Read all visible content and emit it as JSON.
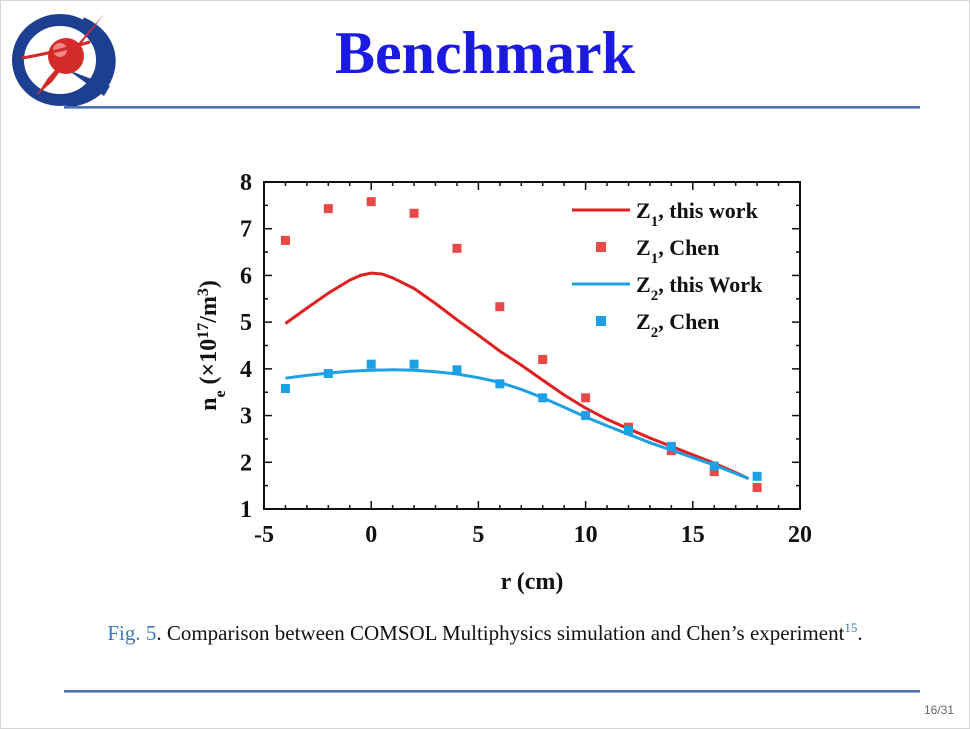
{
  "slide": {
    "title": "Benchmark",
    "page_number": "16/31",
    "caption": {
      "fig_label": "Fig. 5",
      "text": ". Comparison between COMSOL Multiphysics simulation and Chen’s experiment",
      "ref": "15",
      "end": "."
    },
    "colors": {
      "title": "#1a1ae0",
      "rule": "#4a72b8",
      "series_z1": "#e02020",
      "series_z1_points": "#e84848",
      "series_z2": "#1ea0e6"
    }
  },
  "chart_data": {
    "type": "line",
    "xlabel": "r  (cm)",
    "ylabel_main": "n",
    "ylabel_sub": "e",
    "ylabel_rest": "(×10",
    "ylabel_exp": "17",
    "ylabel_unit": "/m",
    "ylabel_unit_exp": "3",
    "ylabel_close": ")",
    "xlim": [
      -5,
      20
    ],
    "ylim": [
      1,
      8
    ],
    "xticks": [
      "-5",
      "0",
      "5",
      "10",
      "15",
      "20"
    ],
    "yticks": [
      "1",
      "2",
      "3",
      "4",
      "5",
      "6",
      "7",
      "8"
    ],
    "legend_position": "top-right",
    "series": [
      {
        "name": "Z1, this work",
        "legend_main": "Z",
        "legend_sub": "1",
        "legend_rest": ", this work",
        "kind": "line",
        "color": "#e02020",
        "x": [
          -4,
          -3,
          -2,
          -1,
          -0.5,
          0,
          0.5,
          1,
          2,
          3,
          4,
          5,
          6,
          7,
          8,
          9,
          10,
          11,
          12,
          13,
          14,
          15,
          16,
          17,
          17.6
        ],
        "y": [
          4.97,
          5.3,
          5.62,
          5.9,
          6.0,
          6.05,
          6.03,
          5.95,
          5.72,
          5.4,
          5.05,
          4.72,
          4.38,
          4.08,
          3.76,
          3.44,
          3.16,
          2.92,
          2.72,
          2.52,
          2.34,
          2.16,
          1.98,
          1.78,
          1.65
        ]
      },
      {
        "name": "Z1, Chen",
        "legend_main": "Z",
        "legend_sub": "1",
        "legend_rest": ", Chen",
        "kind": "points",
        "color": "#e84848",
        "x": [
          -4,
          -2,
          0,
          2,
          4,
          6,
          8,
          10,
          12,
          14,
          16,
          18
        ],
        "y": [
          6.75,
          7.43,
          7.58,
          7.33,
          6.58,
          5.33,
          4.2,
          3.38,
          2.75,
          2.25,
          1.8,
          1.46
        ]
      },
      {
        "name": "Z2, this Work",
        "legend_main": "Z",
        "legend_sub": "2",
        "legend_rest": ", this Work",
        "kind": "line",
        "color": "#1ea0e6",
        "x": [
          -4,
          -3,
          -2,
          -1,
          0,
          1,
          2,
          3,
          4,
          5,
          6,
          7,
          8,
          9,
          10,
          11,
          12,
          13,
          14,
          15,
          16,
          17,
          17.6
        ],
        "y": [
          3.8,
          3.86,
          3.91,
          3.95,
          3.97,
          3.98,
          3.97,
          3.94,
          3.89,
          3.81,
          3.71,
          3.56,
          3.38,
          3.18,
          2.97,
          2.78,
          2.6,
          2.42,
          2.26,
          2.1,
          1.94,
          1.76,
          1.65
        ]
      },
      {
        "name": "Z2, Chen",
        "legend_main": "Z",
        "legend_sub": "2",
        "legend_rest": ", Chen",
        "kind": "points",
        "color": "#1ea0e6",
        "x": [
          -4,
          -2,
          0,
          2,
          4,
          6,
          8,
          10,
          12,
          14,
          16,
          18
        ],
        "y": [
          3.58,
          3.9,
          4.1,
          4.1,
          3.98,
          3.68,
          3.38,
          3.0,
          2.68,
          2.34,
          1.92,
          1.7
        ]
      }
    ]
  }
}
